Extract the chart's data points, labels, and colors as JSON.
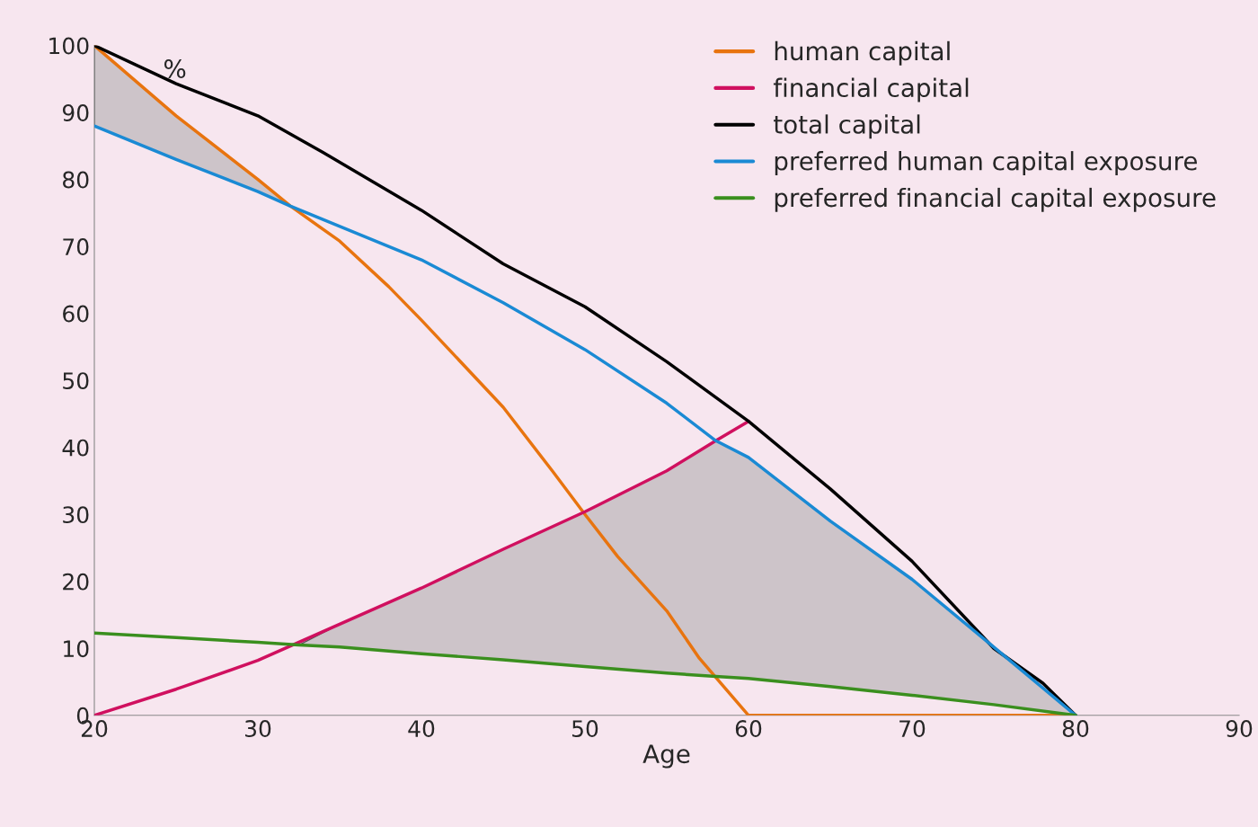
{
  "chart_data": {
    "type": "line",
    "xlabel": "Age",
    "ylabel": "%",
    "xlim": [
      20,
      90
    ],
    "xticks": [
      20,
      30,
      40,
      50,
      60,
      70,
      80,
      90
    ],
    "ylim": [
      0,
      100
    ],
    "yticks": [
      0,
      10,
      20,
      30,
      40,
      50,
      60,
      70,
      80,
      90,
      100
    ],
    "legend": "top right",
    "grid": false,
    "series": [
      {
        "name": "human capital",
        "color": "#e8740f",
        "x": [
          20,
          25,
          30,
          32,
          35,
          38,
          40,
          45,
          48,
          50,
          52,
          55,
          57,
          60,
          70,
          80
        ],
        "values": [
          100,
          89.5,
          80,
          76,
          70.8,
          64,
          59,
          46,
          36.5,
          30,
          23.7,
          15.6,
          8.5,
          0,
          0,
          0
        ]
      },
      {
        "name": "financial capital",
        "color": "#d0105f",
        "x": [
          20,
          25,
          30,
          35,
          40,
          45,
          50,
          55,
          58,
          60
        ],
        "values": [
          0,
          3.9,
          8.2,
          13.6,
          19,
          24.8,
          30.4,
          36.5,
          41,
          43.9
        ]
      },
      {
        "name": "total capital",
        "color": "#000000",
        "x": [
          20,
          25,
          30,
          34,
          40,
          45,
          50,
          55,
          60,
          65,
          70,
          75,
          78,
          80
        ],
        "values": [
          100,
          94.3,
          89.5,
          84,
          75.4,
          67.4,
          61,
          52.8,
          43.9,
          33.8,
          23,
          10,
          4.8,
          0
        ]
      },
      {
        "name": "preferred human capital exposure",
        "color": "#1a8ad4",
        "x": [
          20,
          25,
          30,
          32,
          40,
          45,
          50,
          55,
          58,
          60,
          65,
          70,
          75,
          80
        ],
        "values": [
          88,
          83,
          78.2,
          76,
          68,
          61.6,
          54.6,
          46.6,
          41,
          38.5,
          29,
          20.3,
          10.2,
          0
        ],
        "lower": [
          88,
          83,
          78.2,
          76,
          null,
          null,
          null,
          null,
          null,
          null,
          null,
          null,
          null,
          null
        ],
        "upper": [
          100,
          89.5,
          80,
          76,
          null,
          null,
          null,
          null,
          null,
          null,
          null,
          null,
          null,
          null
        ]
      },
      {
        "name": "preferred financial capital exposure",
        "color": "#3a8f1e",
        "x": [
          20,
          25,
          30,
          32.5,
          35,
          40,
          45,
          50,
          55,
          58,
          60,
          65,
          70,
          75,
          80
        ],
        "values": [
          12.3,
          11.6,
          10.9,
          10.5,
          10.2,
          9.2,
          8.3,
          7.3,
          6.3,
          5.8,
          5.5,
          4.3,
          3,
          1.6,
          0
        ],
        "lower": [
          null,
          null,
          null,
          10.5,
          10.2,
          9.2,
          8.3,
          7.3,
          6.3,
          5.8,
          5.5,
          4.3,
          3,
          1.6,
          0
        ],
        "upper": [
          null,
          null,
          null,
          10.5,
          13.6,
          19,
          24.8,
          30.4,
          36.5,
          41,
          38.5,
          29,
          20.3,
          10.2,
          0
        ]
      }
    ]
  }
}
